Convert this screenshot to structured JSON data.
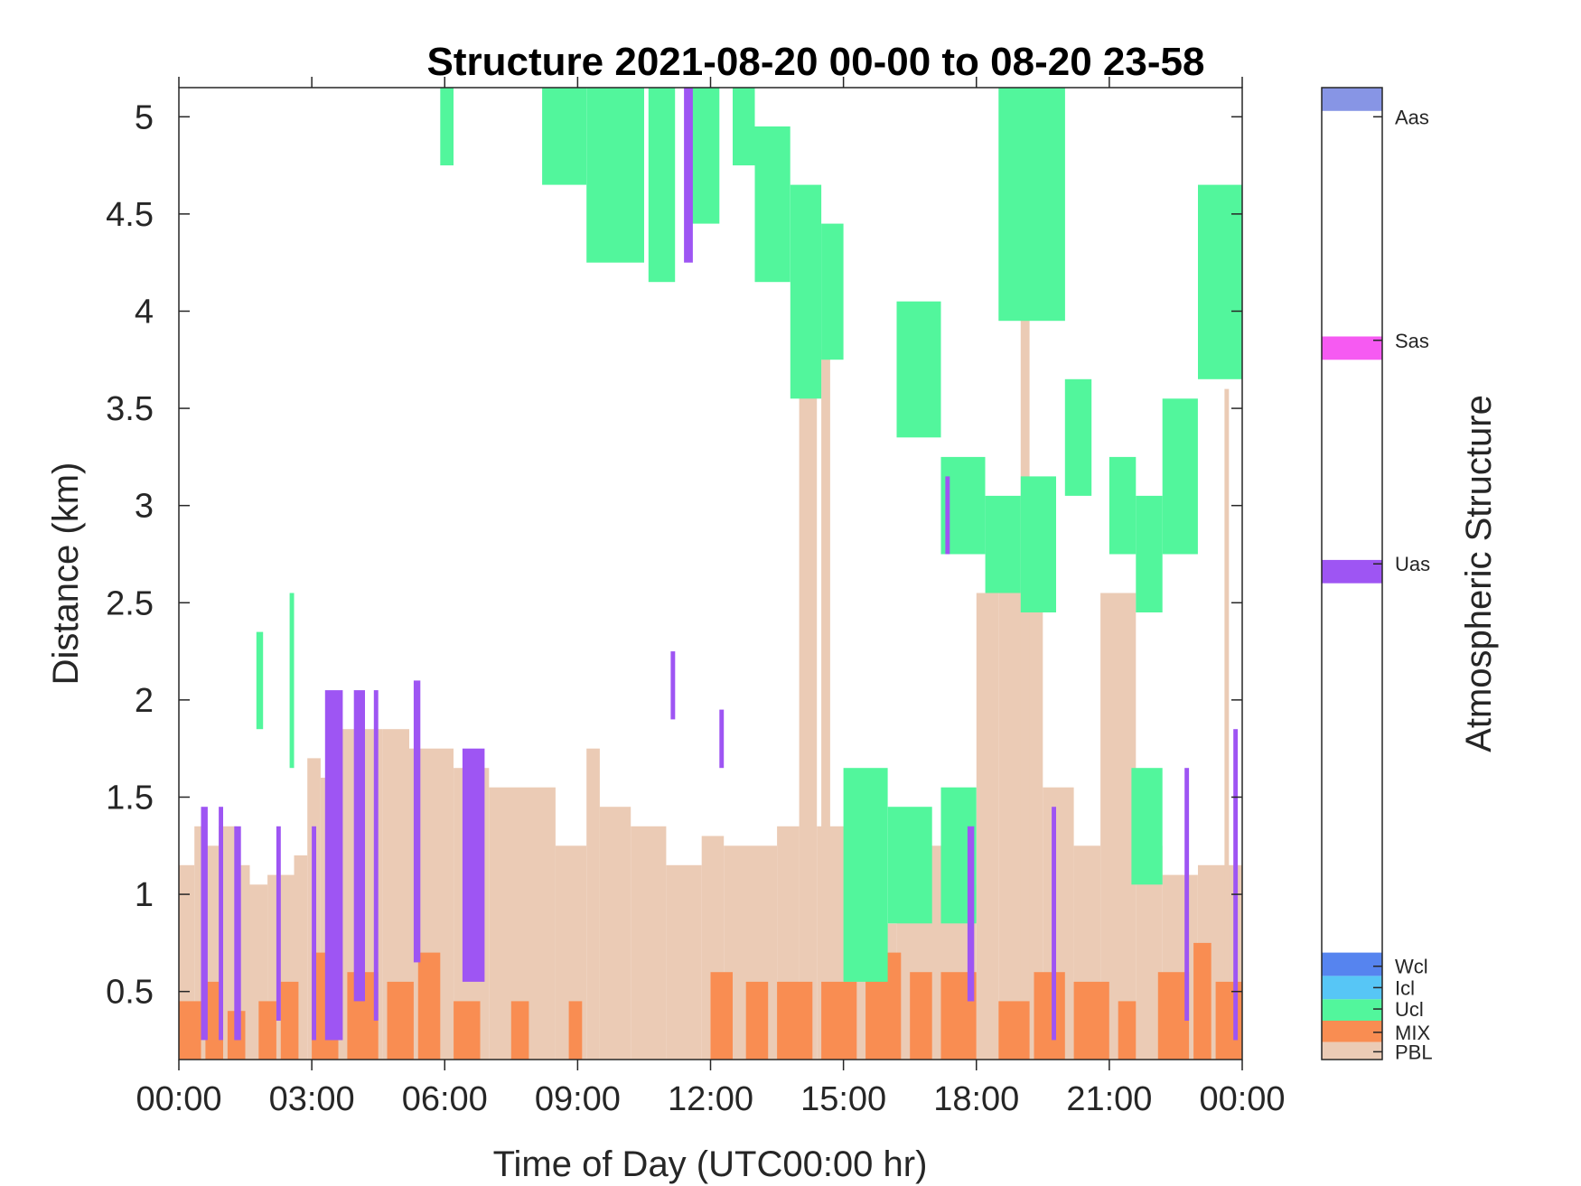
{
  "chart_data": {
    "type": "heatmap",
    "title": "Structure 2021-08-20 00-00 to 08-20 23-58",
    "xlabel": "Time of Day (UTC00:00 hr)",
    "ylabel": "Distance (km)",
    "colorbar_label": "Atmospheric Structure",
    "xlim_hours": [
      0,
      24
    ],
    "ylim_km": [
      0.15,
      5.15
    ],
    "x_ticks": [
      {
        "value": 0,
        "label": "00:00"
      },
      {
        "value": 3,
        "label": "03:00"
      },
      {
        "value": 6,
        "label": "06:00"
      },
      {
        "value": 9,
        "label": "09:00"
      },
      {
        "value": 12,
        "label": "12:00"
      },
      {
        "value": 15,
        "label": "15:00"
      },
      {
        "value": 18,
        "label": "18:00"
      },
      {
        "value": 21,
        "label": "21:00"
      },
      {
        "value": 24,
        "label": "00:00"
      }
    ],
    "y_ticks": [
      {
        "value": 0.5,
        "label": "0.5"
      },
      {
        "value": 1,
        "label": "1"
      },
      {
        "value": 1.5,
        "label": "1.5"
      },
      {
        "value": 2,
        "label": "2"
      },
      {
        "value": 2.5,
        "label": "2.5"
      },
      {
        "value": 3,
        "label": "3"
      },
      {
        "value": 3.5,
        "label": "3.5"
      },
      {
        "value": 4,
        "label": "4"
      },
      {
        "value": 4.5,
        "label": "4.5"
      },
      {
        "value": 5,
        "label": "5"
      }
    ],
    "categories": [
      {
        "code": "PBL",
        "color": "#ebcbb5"
      },
      {
        "code": "MIX",
        "color": "#f98d52"
      },
      {
        "code": "Ucl",
        "color": "#52f69c"
      },
      {
        "code": "Icl",
        "color": "#57c6f6"
      },
      {
        "code": "Wcl",
        "color": "#5684ef"
      },
      {
        "code": "Uas",
        "color": "#9e55f3"
      },
      {
        "code": "Sas",
        "color": "#f65af2"
      },
      {
        "code": "Aas",
        "color": "#8795e5"
      }
    ],
    "colorbar_label_positions": {
      "Aas": 5.0,
      "Sas": 3.85,
      "Uas": 2.7,
      "Wcl": 0.63,
      "Icl": 0.52,
      "Ucl": 0.41,
      "MIX": 0.29,
      "PBL": 0.19
    },
    "colorbar_bands": [
      {
        "category": "Aas",
        "from": 5.03,
        "to": 5.15
      },
      {
        "category": "Sas",
        "from": 3.75,
        "to": 3.87
      },
      {
        "category": "Uas",
        "from": 2.6,
        "to": 2.72
      },
      {
        "category": "Wcl",
        "from": 0.58,
        "to": 0.7
      },
      {
        "category": "Icl",
        "from": 0.46,
        "to": 0.58
      },
      {
        "category": "Ucl",
        "from": 0.35,
        "to": 0.46
      },
      {
        "category": "MIX",
        "from": 0.24,
        "to": 0.35
      },
      {
        "category": "PBL",
        "from": 0.15,
        "to": 0.24
      }
    ],
    "segments": [
      {
        "category": "PBL",
        "start": 0.0,
        "end": 0.35,
        "top": 1.15
      },
      {
        "category": "PBL",
        "start": 0.35,
        "end": 0.6,
        "top": 1.35
      },
      {
        "category": "PBL",
        "start": 0.6,
        "end": 0.9,
        "top": 1.25
      },
      {
        "category": "PBL",
        "start": 0.9,
        "end": 1.3,
        "top": 1.35
      },
      {
        "category": "PBL",
        "start": 1.3,
        "end": 1.6,
        "top": 1.15
      },
      {
        "category": "PBL",
        "start": 1.6,
        "end": 2.0,
        "top": 1.05
      },
      {
        "category": "PBL",
        "start": 2.0,
        "end": 2.6,
        "top": 1.1
      },
      {
        "category": "PBL",
        "start": 2.6,
        "end": 2.9,
        "top": 1.2
      },
      {
        "category": "PBL",
        "start": 2.9,
        "end": 3.2,
        "top": 1.7
      },
      {
        "category": "PBL",
        "start": 3.2,
        "end": 3.6,
        "top": 1.6
      },
      {
        "category": "PBL",
        "start": 3.6,
        "end": 4.6,
        "top": 1.85
      },
      {
        "category": "PBL",
        "start": 4.6,
        "end": 5.2,
        "top": 1.85
      },
      {
        "category": "PBL",
        "start": 5.2,
        "end": 6.2,
        "top": 1.75
      },
      {
        "category": "PBL",
        "start": 6.2,
        "end": 7.0,
        "top": 1.65
      },
      {
        "category": "PBL",
        "start": 7.0,
        "end": 8.5,
        "top": 1.55
      },
      {
        "category": "PBL",
        "start": 8.5,
        "end": 9.2,
        "top": 1.25
      },
      {
        "category": "PBL",
        "start": 9.2,
        "end": 9.5,
        "top": 1.75
      },
      {
        "category": "PBL",
        "start": 9.5,
        "end": 10.2,
        "top": 1.45
      },
      {
        "category": "PBL",
        "start": 10.2,
        "end": 11.0,
        "top": 1.35
      },
      {
        "category": "PBL",
        "start": 11.0,
        "end": 11.8,
        "top": 1.15
      },
      {
        "category": "PBL",
        "start": 11.8,
        "end": 12.3,
        "top": 1.3
      },
      {
        "category": "PBL",
        "start": 12.3,
        "end": 13.5,
        "top": 1.25
      },
      {
        "category": "PBL",
        "start": 13.5,
        "end": 14.0,
        "top": 1.35
      },
      {
        "category": "PBL",
        "start": 14.0,
        "end": 14.4,
        "top": 3.75
      },
      {
        "category": "PBL",
        "start": 14.4,
        "end": 15.2,
        "top": 1.35
      },
      {
        "category": "PBL",
        "start": 15.2,
        "end": 16.2,
        "top": 0.85
      },
      {
        "category": "PBL",
        "start": 16.2,
        "end": 17.2,
        "top": 1.25
      },
      {
        "category": "PBL",
        "start": 17.2,
        "end": 18.0,
        "top": 1.05
      },
      {
        "category": "PBL",
        "start": 18.0,
        "end": 18.5,
        "top": 2.55
      },
      {
        "category": "PBL",
        "start": 18.5,
        "end": 19.5,
        "top": 2.55
      },
      {
        "category": "PBL",
        "start": 19.5,
        "end": 20.2,
        "top": 1.55
      },
      {
        "category": "PBL",
        "start": 20.2,
        "end": 20.8,
        "top": 1.25
      },
      {
        "category": "PBL",
        "start": 20.8,
        "end": 21.6,
        "top": 2.55
      },
      {
        "category": "PBL",
        "start": 21.6,
        "end": 22.2,
        "top": 1.25
      },
      {
        "category": "PBL",
        "start": 22.2,
        "end": 23.0,
        "top": 1.1
      },
      {
        "category": "PBL",
        "start": 23.0,
        "end": 24.0,
        "top": 1.15
      },
      {
        "category": "PBL",
        "start": 14.5,
        "end": 14.7,
        "top": 3.8
      },
      {
        "category": "PBL",
        "start": 19.0,
        "end": 19.2,
        "top": 4.0
      },
      {
        "category": "PBL",
        "start": 23.6,
        "end": 23.7,
        "top": 3.6
      },
      {
        "category": "MIX",
        "start": 0.0,
        "end": 0.5,
        "top": 0.45
      },
      {
        "category": "MIX",
        "start": 0.6,
        "end": 1.0,
        "top": 0.55
      },
      {
        "category": "MIX",
        "start": 1.1,
        "end": 1.5,
        "top": 0.4
      },
      {
        "category": "MIX",
        "start": 1.8,
        "end": 2.2,
        "top": 0.45
      },
      {
        "category": "MIX",
        "start": 2.3,
        "end": 2.7,
        "top": 0.55
      },
      {
        "category": "MIX",
        "start": 3.0,
        "end": 3.6,
        "top": 0.7
      },
      {
        "category": "MIX",
        "start": 3.8,
        "end": 4.5,
        "top": 0.6
      },
      {
        "category": "MIX",
        "start": 4.7,
        "end": 5.3,
        "top": 0.55
      },
      {
        "category": "MIX",
        "start": 5.4,
        "end": 5.9,
        "top": 0.7
      },
      {
        "category": "MIX",
        "start": 6.2,
        "end": 6.8,
        "top": 0.45
      },
      {
        "category": "MIX",
        "start": 7.5,
        "end": 7.9,
        "top": 0.45
      },
      {
        "category": "MIX",
        "start": 8.8,
        "end": 9.1,
        "top": 0.45
      },
      {
        "category": "MIX",
        "start": 12.0,
        "end": 12.5,
        "top": 0.6
      },
      {
        "category": "MIX",
        "start": 12.8,
        "end": 13.3,
        "top": 0.55
      },
      {
        "category": "MIX",
        "start": 13.5,
        "end": 14.3,
        "top": 0.55
      },
      {
        "category": "MIX",
        "start": 14.5,
        "end": 15.3,
        "top": 0.55
      },
      {
        "category": "MIX",
        "start": 15.5,
        "end": 16.3,
        "top": 0.7
      },
      {
        "category": "MIX",
        "start": 16.5,
        "end": 17.0,
        "top": 0.6
      },
      {
        "category": "MIX",
        "start": 17.2,
        "end": 18.0,
        "top": 0.6
      },
      {
        "category": "MIX",
        "start": 18.5,
        "end": 19.2,
        "top": 0.45
      },
      {
        "category": "MIX",
        "start": 19.3,
        "end": 20.0,
        "top": 0.6
      },
      {
        "category": "MIX",
        "start": 20.2,
        "end": 21.0,
        "top": 0.55
      },
      {
        "category": "MIX",
        "start": 21.2,
        "end": 21.6,
        "top": 0.45
      },
      {
        "category": "MIX",
        "start": 22.1,
        "end": 22.8,
        "top": 0.6
      },
      {
        "category": "MIX",
        "start": 22.9,
        "end": 23.3,
        "top": 0.75
      },
      {
        "category": "MIX",
        "start": 23.4,
        "end": 24.0,
        "top": 0.55
      },
      {
        "category": "Ucl",
        "start": 1.75,
        "end": 1.9,
        "bottom": 1.85,
        "top": 2.35
      },
      {
        "category": "Ucl",
        "start": 2.5,
        "end": 2.6,
        "bottom": 1.65,
        "top": 2.55
      },
      {
        "category": "Ucl",
        "start": 5.9,
        "end": 6.2,
        "bottom": 4.75,
        "top": 5.15
      },
      {
        "category": "Ucl",
        "start": 8.2,
        "end": 9.2,
        "bottom": 4.65,
        "top": 5.15
      },
      {
        "category": "Ucl",
        "start": 9.2,
        "end": 10.5,
        "bottom": 4.25,
        "top": 5.15
      },
      {
        "category": "Ucl",
        "start": 10.6,
        "end": 11.2,
        "bottom": 4.15,
        "top": 5.15
      },
      {
        "category": "Ucl",
        "start": 11.5,
        "end": 12.2,
        "bottom": 4.45,
        "top": 5.15
      },
      {
        "category": "Ucl",
        "start": 12.5,
        "end": 13.0,
        "bottom": 4.75,
        "top": 5.15
      },
      {
        "category": "Ucl",
        "start": 13.0,
        "end": 13.8,
        "bottom": 4.15,
        "top": 4.95
      },
      {
        "category": "Ucl",
        "start": 13.8,
        "end": 14.5,
        "bottom": 3.55,
        "top": 4.65
      },
      {
        "category": "Ucl",
        "start": 14.5,
        "end": 15.0,
        "bottom": 3.75,
        "top": 4.45
      },
      {
        "category": "Ucl",
        "start": 15.0,
        "end": 16.0,
        "bottom": 0.55,
        "top": 1.65
      },
      {
        "category": "Ucl",
        "start": 16.0,
        "end": 17.0,
        "bottom": 0.85,
        "top": 1.45
      },
      {
        "category": "Ucl",
        "start": 16.2,
        "end": 17.2,
        "bottom": 3.35,
        "top": 4.05
      },
      {
        "category": "Ucl",
        "start": 17.2,
        "end": 18.2,
        "bottom": 2.75,
        "top": 3.25
      },
      {
        "category": "Ucl",
        "start": 17.2,
        "end": 18.0,
        "bottom": 0.85,
        "top": 1.55
      },
      {
        "category": "Ucl",
        "start": 18.2,
        "end": 19.0,
        "bottom": 2.55,
        "top": 3.05
      },
      {
        "category": "Ucl",
        "start": 19.0,
        "end": 19.8,
        "bottom": 2.45,
        "top": 3.15
      },
      {
        "category": "Ucl",
        "start": 18.5,
        "end": 20.0,
        "bottom": 3.95,
        "top": 5.15
      },
      {
        "category": "Ucl",
        "start": 20.0,
        "end": 20.6,
        "bottom": 3.05,
        "top": 3.65
      },
      {
        "category": "Ucl",
        "start": 21.0,
        "end": 21.6,
        "bottom": 2.75,
        "top": 3.25
      },
      {
        "category": "Ucl",
        "start": 21.6,
        "end": 22.2,
        "bottom": 2.45,
        "top": 3.05
      },
      {
        "category": "Ucl",
        "start": 21.5,
        "end": 22.2,
        "bottom": 1.05,
        "top": 1.65
      },
      {
        "category": "Ucl",
        "start": 22.2,
        "end": 23.0,
        "bottom": 2.75,
        "top": 3.55
      },
      {
        "category": "Ucl",
        "start": 23.0,
        "end": 24.0,
        "bottom": 3.65,
        "top": 4.65
      },
      {
        "category": "Uas",
        "start": 0.5,
        "end": 0.65,
        "bottom": 0.25,
        "top": 1.45
      },
      {
        "category": "Uas",
        "start": 0.9,
        "end": 1.0,
        "bottom": 0.25,
        "top": 1.45
      },
      {
        "category": "Uas",
        "start": 1.25,
        "end": 1.4,
        "bottom": 0.25,
        "top": 1.35
      },
      {
        "category": "Uas",
        "start": 2.2,
        "end": 2.3,
        "bottom": 0.35,
        "top": 1.35
      },
      {
        "category": "Uas",
        "start": 3.0,
        "end": 3.1,
        "bottom": 0.25,
        "top": 1.35
      },
      {
        "category": "Uas",
        "start": 3.3,
        "end": 3.7,
        "bottom": 0.25,
        "top": 2.05
      },
      {
        "category": "Uas",
        "start": 3.95,
        "end": 4.2,
        "bottom": 0.45,
        "top": 2.05
      },
      {
        "category": "Uas",
        "start": 4.4,
        "end": 4.5,
        "bottom": 0.35,
        "top": 2.05
      },
      {
        "category": "Uas",
        "start": 5.3,
        "end": 5.45,
        "bottom": 0.65,
        "top": 2.1
      },
      {
        "category": "Uas",
        "start": 6.4,
        "end": 6.9,
        "bottom": 0.55,
        "top": 1.75
      },
      {
        "category": "Uas",
        "start": 11.1,
        "end": 11.2,
        "bottom": 1.9,
        "top": 2.25
      },
      {
        "category": "Uas",
        "start": 11.4,
        "end": 11.6,
        "bottom": 4.25,
        "top": 5.15
      },
      {
        "category": "Uas",
        "start": 12.2,
        "end": 12.3,
        "bottom": 1.65,
        "top": 1.95
      },
      {
        "category": "Uas",
        "start": 17.3,
        "end": 17.4,
        "bottom": 2.75,
        "top": 3.15
      },
      {
        "category": "Uas",
        "start": 17.8,
        "end": 17.95,
        "bottom": 0.45,
        "top": 1.35
      },
      {
        "category": "Uas",
        "start": 19.7,
        "end": 19.8,
        "bottom": 0.25,
        "top": 1.45
      },
      {
        "category": "Uas",
        "start": 22.7,
        "end": 22.8,
        "bottom": 0.35,
        "top": 1.65
      },
      {
        "category": "Uas",
        "start": 23.8,
        "end": 23.9,
        "bottom": 0.25,
        "top": 1.85
      }
    ]
  }
}
